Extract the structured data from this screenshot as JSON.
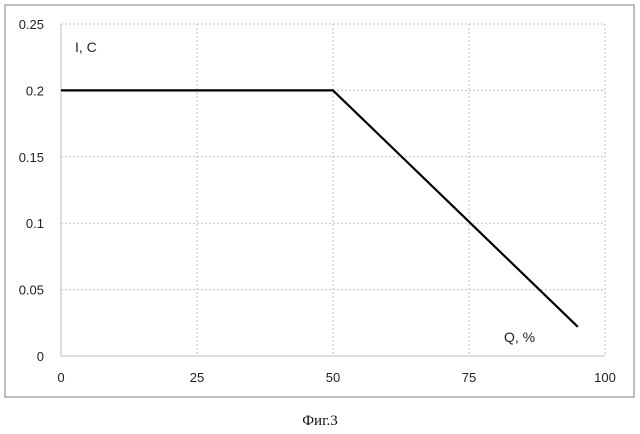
{
  "caption": "Фиг.3",
  "chart_data": {
    "type": "line",
    "ylabel": "I, C",
    "xlabel": "Q, %",
    "xlim": [
      0,
      100
    ],
    "ylim": [
      0,
      0.25
    ],
    "xticks": [
      "0",
      "25",
      "50",
      "75",
      "100"
    ],
    "yticks": [
      "0",
      "0.05",
      "0.1",
      "0.15",
      "0.2",
      "0.25"
    ],
    "grid": true,
    "series": [
      {
        "x": [
          0,
          50,
          95
        ],
        "y": [
          0.2,
          0.2,
          0.022
        ]
      }
    ],
    "colors": {
      "line": "#000000",
      "grid": "#bfbfbf",
      "frame": "#7f7f7f"
    }
  }
}
